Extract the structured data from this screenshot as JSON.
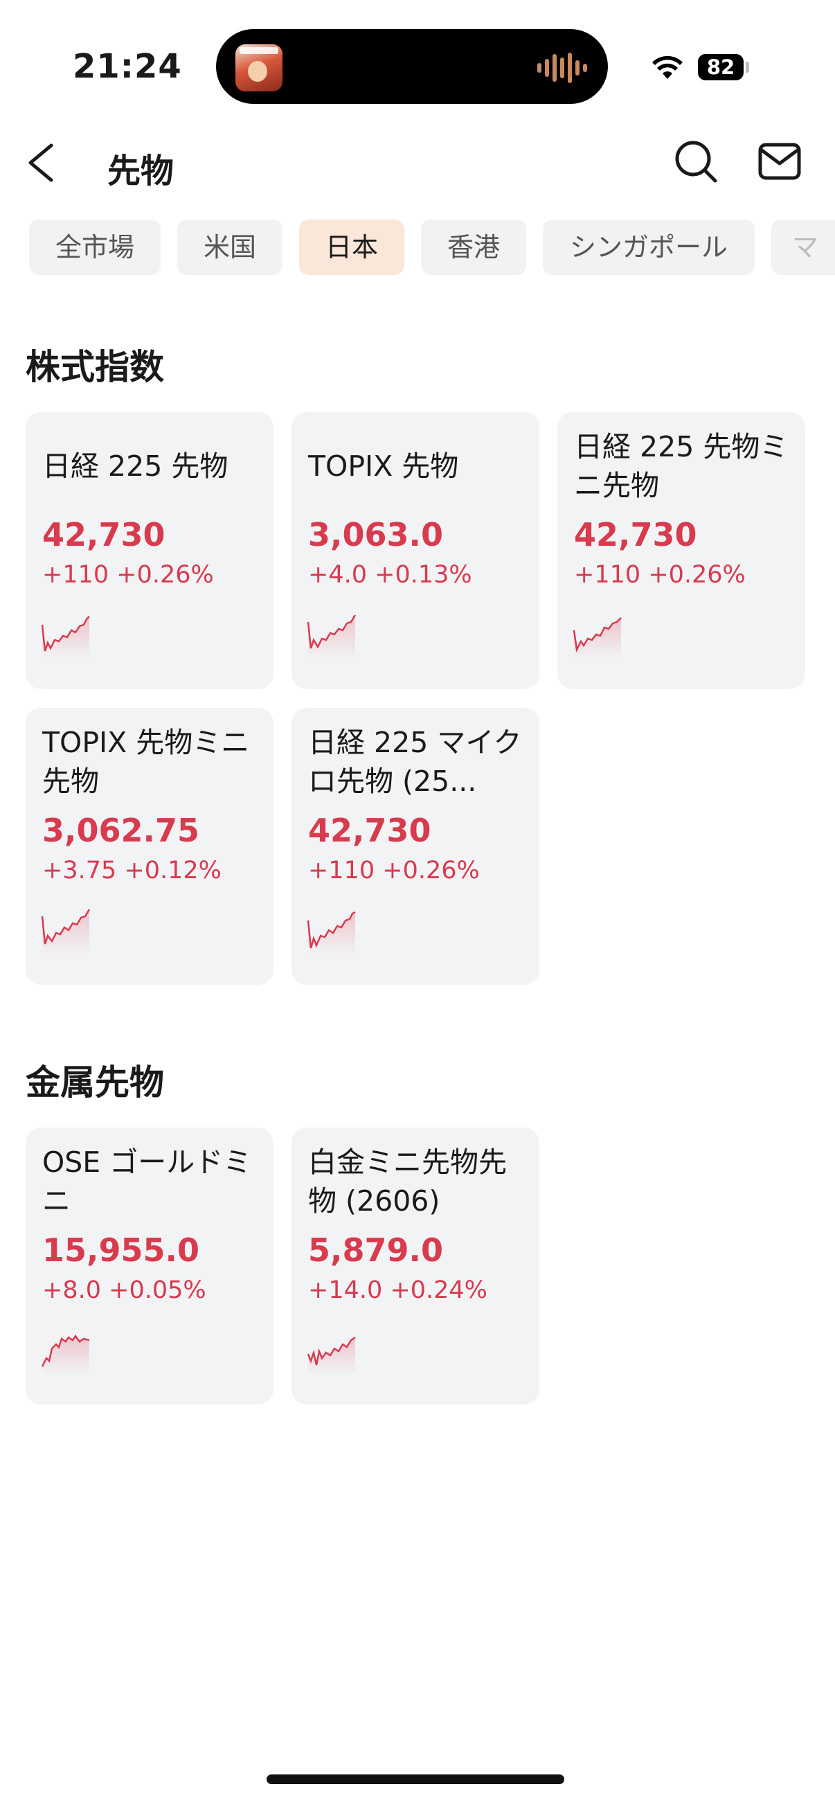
{
  "status": {
    "time": "21:24",
    "battery": "82"
  },
  "header": {
    "title": "先物"
  },
  "tabs": [
    {
      "label": "全市場",
      "active": false
    },
    {
      "label": "米国",
      "active": false
    },
    {
      "label": "日本",
      "active": true
    },
    {
      "label": "香港",
      "active": false
    },
    {
      "label": "シンガポール",
      "active": false
    },
    {
      "label": "マ",
      "active": false
    }
  ],
  "sections": {
    "stock_index": {
      "title": "株式指数",
      "cards": [
        {
          "name": "日経 225 先物",
          "price": "42,730",
          "change": "+110 +0.26%"
        },
        {
          "name": "TOPIX 先物",
          "price": "3,063.0",
          "change": "+4.0 +0.13%"
        },
        {
          "name": "日経 225 先物ミニ先物",
          "price": "42,730",
          "change": "+110 +0.26%"
        },
        {
          "name": "TOPIX 先物ミニ先物",
          "price": "3,062.75",
          "change": "+3.75 +0.12%"
        },
        {
          "name": "日経 225 マイクロ先物 (25...",
          "price": "42,730",
          "change": "+110 +0.26%"
        }
      ]
    },
    "metal": {
      "title": "金属先物",
      "cards": [
        {
          "name": "OSE ゴールドミニ",
          "price": "15,955.0",
          "change": "+8.0 +0.05%"
        },
        {
          "name": "白金ミニ先物先物 (2606)",
          "price": "5,879.0",
          "change": "+14.0 +0.24%"
        }
      ]
    }
  },
  "colors": {
    "up": "#d83a4e",
    "active_tab_bg": "#fbe7d9",
    "card_bg": "#f2f3f5"
  },
  "icons": {
    "back": "chevron-left-icon",
    "search": "search-icon",
    "mail": "mail-icon",
    "wifi": "wifi-icon",
    "battery": "battery-icon"
  }
}
